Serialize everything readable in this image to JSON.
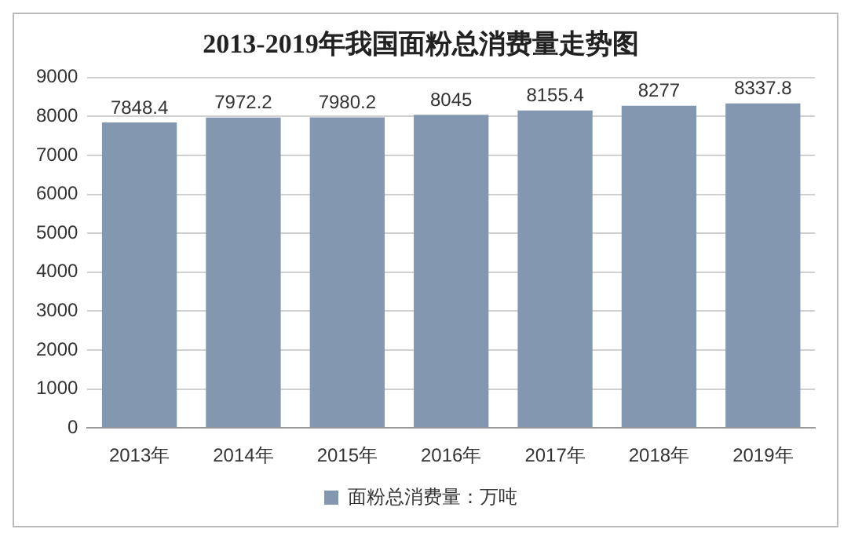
{
  "chart_data": {
    "type": "bar",
    "title": "2013-2019年我国面粉总消费量走势图",
    "categories": [
      "2013年",
      "2014年",
      "2015年",
      "2016年",
      "2017年",
      "2018年",
      "2019年"
    ],
    "series": [
      {
        "name": "面粉总消费量：万吨",
        "color": "#8497b0",
        "values": [
          7848.4,
          7972.2,
          7980.2,
          8045,
          8155.4,
          8277,
          8337.8
        ]
      }
    ],
    "ylim": [
      0,
      9000
    ],
    "yticks": [
      0,
      1000,
      2000,
      3000,
      4000,
      5000,
      6000,
      7000,
      8000,
      9000
    ],
    "grid": "y",
    "legend": "bottom",
    "data_labels": true
  }
}
